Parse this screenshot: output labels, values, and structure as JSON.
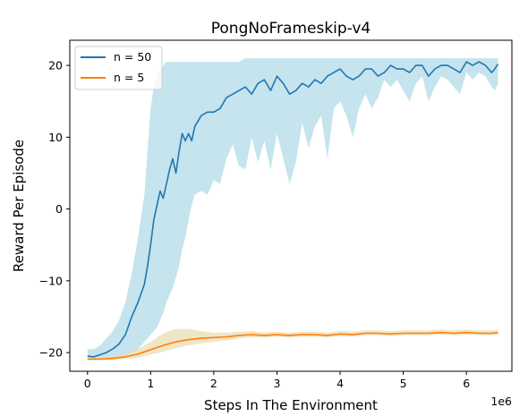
{
  "chart_data": {
    "type": "line",
    "title": "PongNoFrameskip-v4",
    "xlabel": "Steps In The Environment",
    "ylabel": "Reward Per Episode",
    "x_offset_label": "1e6",
    "xlim": [
      -0.28,
      6.72
    ],
    "ylim": [
      -22.6,
      23.5
    ],
    "x_ticks": [
      0,
      1,
      2,
      3,
      4,
      5,
      6
    ],
    "x_tick_labels": [
      "0",
      "1",
      "2",
      "3",
      "4",
      "5",
      "6"
    ],
    "y_ticks": [
      -20,
      -10,
      0,
      10,
      20
    ],
    "y_tick_labels": [
      "−20",
      "−10",
      "0",
      "10",
      "20"
    ],
    "grid": false,
    "legend_position": "upper-left",
    "series": [
      {
        "name": "n = 50",
        "color": "#1f77b4",
        "band_color": "#add8e6",
        "x": [
          0,
          0.1,
          0.2,
          0.3,
          0.4,
          0.5,
          0.6,
          0.7,
          0.8,
          0.9,
          0.95,
          1.0,
          1.05,
          1.1,
          1.15,
          1.2,
          1.25,
          1.3,
          1.35,
          1.4,
          1.45,
          1.5,
          1.55,
          1.6,
          1.65,
          1.7,
          1.8,
          1.9,
          2.0,
          2.1,
          2.2,
          2.3,
          2.4,
          2.5,
          2.6,
          2.7,
          2.8,
          2.9,
          3.0,
          3.1,
          3.2,
          3.3,
          3.4,
          3.5,
          3.6,
          3.7,
          3.8,
          3.9,
          4.0,
          4.1,
          4.2,
          4.3,
          4.4,
          4.5,
          4.6,
          4.7,
          4.8,
          4.9,
          5.0,
          5.1,
          5.2,
          5.3,
          5.4,
          5.5,
          5.6,
          5.7,
          5.8,
          5.9,
          6.0,
          6.1,
          6.2,
          6.3,
          6.4,
          6.45,
          6.5
        ],
        "mean": [
          -20.5,
          -20.6,
          -20.3,
          -20.0,
          -19.5,
          -18.8,
          -17.5,
          -15.0,
          -13.0,
          -10.5,
          -8.0,
          -5.0,
          -1.5,
          0.5,
          2.5,
          1.5,
          3.5,
          5.5,
          7.0,
          5.0,
          8.0,
          10.5,
          9.5,
          10.5,
          9.5,
          11.5,
          13.0,
          13.5,
          13.5,
          14.0,
          15.5,
          16.0,
          16.5,
          17.0,
          16.0,
          17.5,
          18.0,
          16.5,
          18.5,
          17.5,
          16.0,
          16.5,
          17.5,
          17.0,
          18.0,
          17.5,
          18.5,
          19.0,
          19.5,
          18.5,
          18.0,
          18.5,
          19.5,
          19.5,
          18.5,
          19.0,
          20.0,
          19.5,
          19.5,
          19.0,
          20.0,
          20.0,
          18.5,
          19.5,
          20.0,
          20.0,
          19.5,
          19.0,
          20.5,
          20.0,
          20.5,
          20.0,
          19.0,
          19.5,
          20.2
        ],
        "lower": [
          -21.0,
          -21.0,
          -21.0,
          -21.0,
          -21.0,
          -20.8,
          -20.5,
          -20.0,
          -19.5,
          -18.5,
          -18.0,
          -17.5,
          -17.0,
          -16.5,
          -15.5,
          -14.5,
          -13.0,
          -12.0,
          -11.0,
          -9.5,
          -8.0,
          -5.5,
          -4.0,
          -1.5,
          0.5,
          2.0,
          2.5,
          2.0,
          4.0,
          3.5,
          7.0,
          9.0,
          6.0,
          5.5,
          10.0,
          6.5,
          9.5,
          5.5,
          10.5,
          7.0,
          3.5,
          6.5,
          12.0,
          8.5,
          11.5,
          13.0,
          7.0,
          14.0,
          15.0,
          13.0,
          10.0,
          14.0,
          16.0,
          14.0,
          15.5,
          18.0,
          17.0,
          18.0,
          16.5,
          15.0,
          17.5,
          18.5,
          15.0,
          17.0,
          18.5,
          18.0,
          17.0,
          16.0,
          19.0,
          18.0,
          19.0,
          18.5,
          17.0,
          16.5,
          17.5
        ],
        "upper": [
          -19.5,
          -19.5,
          -19.0,
          -18.0,
          -17.0,
          -15.5,
          -13.0,
          -9.0,
          -4.0,
          2.0,
          8.0,
          14.0,
          17.0,
          18.5,
          19.5,
          20.0,
          20.5,
          20.5,
          20.5,
          20.5,
          20.5,
          20.5,
          20.5,
          20.5,
          20.5,
          20.5,
          20.5,
          20.5,
          20.5,
          20.5,
          20.5,
          20.5,
          20.5,
          21.0,
          21.0,
          21.0,
          21.0,
          21.0,
          21.0,
          21.0,
          21.0,
          21.0,
          21.0,
          21.0,
          21.0,
          21.0,
          21.0,
          21.0,
          21.0,
          21.0,
          21.0,
          21.0,
          21.0,
          21.0,
          21.0,
          21.0,
          21.0,
          21.0,
          21.0,
          21.0,
          21.0,
          21.0,
          21.0,
          21.0,
          21.0,
          21.0,
          21.0,
          21.0,
          21.0,
          21.0,
          21.0,
          21.0,
          21.0,
          21.0,
          21.0
        ]
      },
      {
        "name": "n = 5",
        "color": "#ff7f0e",
        "band_color": "#e8dcae",
        "x": [
          0,
          0.2,
          0.4,
          0.6,
          0.8,
          1.0,
          1.2,
          1.4,
          1.6,
          1.8,
          2.0,
          2.2,
          2.4,
          2.6,
          2.8,
          3.0,
          3.2,
          3.4,
          3.6,
          3.8,
          4.0,
          4.2,
          4.4,
          4.6,
          4.8,
          5.0,
          5.2,
          5.4,
          5.6,
          5.8,
          6.0,
          6.2,
          6.4,
          6.5
        ],
        "mean": [
          -20.9,
          -20.9,
          -20.8,
          -20.6,
          -20.2,
          -19.6,
          -19.0,
          -18.5,
          -18.2,
          -18.0,
          -17.9,
          -17.8,
          -17.6,
          -17.5,
          -17.6,
          -17.5,
          -17.6,
          -17.5,
          -17.5,
          -17.6,
          -17.4,
          -17.5,
          -17.3,
          -17.3,
          -17.4,
          -17.3,
          -17.3,
          -17.3,
          -17.2,
          -17.3,
          -17.2,
          -17.3,
          -17.3,
          -17.2
        ],
        "lower": [
          -21.0,
          -21.0,
          -21.0,
          -20.9,
          -20.7,
          -20.3,
          -19.9,
          -19.4,
          -19.0,
          -18.7,
          -18.5,
          -18.3,
          -18.0,
          -17.9,
          -17.9,
          -17.8,
          -17.9,
          -17.8,
          -17.8,
          -17.9,
          -17.7,
          -17.8,
          -17.6,
          -17.6,
          -17.7,
          -17.6,
          -17.6,
          -17.6,
          -17.5,
          -17.6,
          -17.5,
          -17.6,
          -17.6,
          -17.5
        ],
        "upper": [
          -20.7,
          -20.7,
          -20.5,
          -20.2,
          -19.5,
          -18.5,
          -17.3,
          -16.7,
          -16.7,
          -17.0,
          -17.2,
          -17.2,
          -17.1,
          -17.0,
          -17.2,
          -17.1,
          -17.2,
          -17.1,
          -17.1,
          -17.2,
          -17.0,
          -17.1,
          -16.9,
          -16.9,
          -17.0,
          -16.9,
          -16.9,
          -16.9,
          -16.8,
          -16.9,
          -16.8,
          -16.9,
          -16.9,
          -16.8
        ]
      }
    ]
  }
}
